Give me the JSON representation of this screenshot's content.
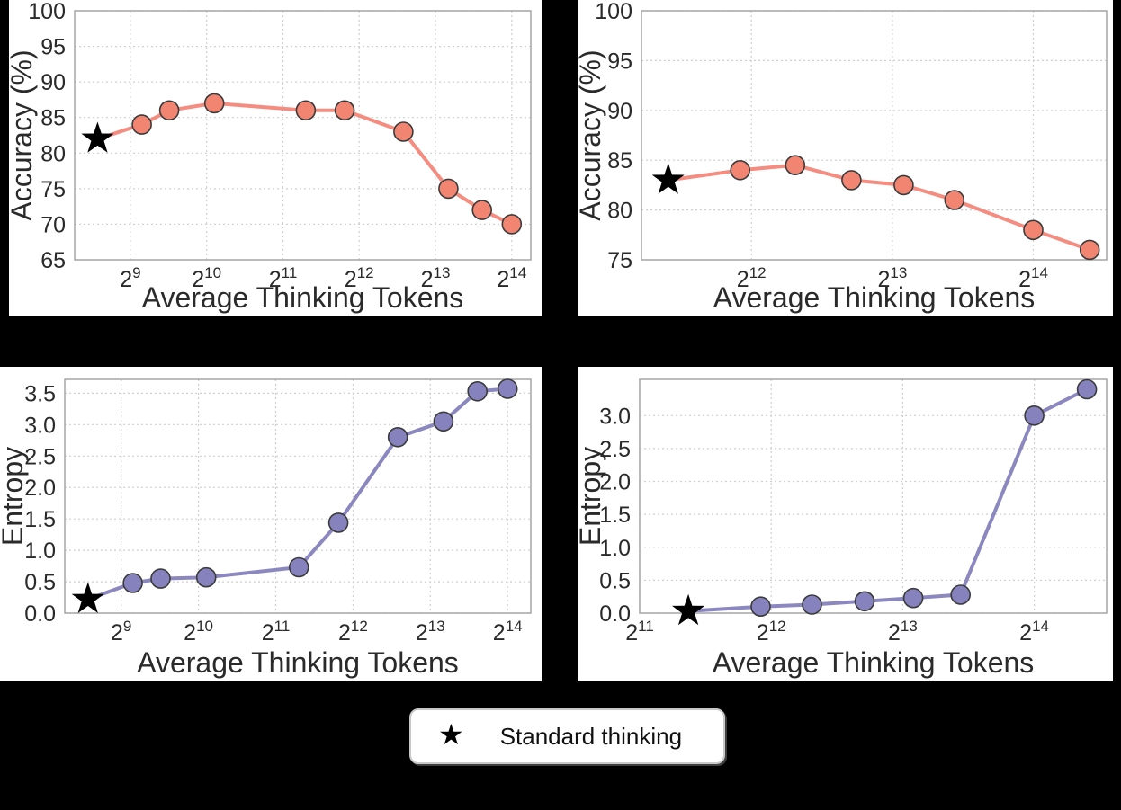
{
  "page": {
    "background": "#000000",
    "panel_background": "#ffffff"
  },
  "colors": {
    "accuracy_line": "#f58c80",
    "accuracy_marker": "#f18572",
    "entropy_line": "#8b87bf",
    "entropy_marker": "#8682bd",
    "marker_edge": "#3b3b3b",
    "star": "#000000",
    "grid": "#cfcfcf",
    "spine": "#a6a6a6",
    "text": "#2a2a2a"
  },
  "legend": {
    "star_glyph": "★",
    "label": "Standard thinking"
  },
  "chart_data": [
    {
      "position": "top-left",
      "type": "line",
      "xlabel": "Average Thinking Tokens",
      "ylabel": "Accuracy (%)",
      "x_scale": "log2",
      "x_tick_base": "2",
      "x_tick_exponents": [
        9,
        10,
        11,
        12,
        13,
        14
      ],
      "xlim_log2": [
        8.27,
        14.25
      ],
      "y_ticks": [
        65,
        70,
        75,
        80,
        85,
        90,
        95,
        100
      ],
      "y_tick_labels": [
        "65",
        "70",
        "75",
        "80",
        "85",
        "90",
        "95",
        "100"
      ],
      "ylim": [
        65,
        100
      ],
      "grid": true,
      "line_color": "#f58c80",
      "marker_color": "#f18572",
      "star_point": {
        "x_log2": 8.57,
        "y": 82
      },
      "points": {
        "x_log2": [
          9.15,
          9.51,
          10.1,
          11.3,
          11.81,
          12.58,
          13.17,
          13.61,
          14.0
        ],
        "y": [
          84,
          86,
          87,
          86,
          86,
          83,
          75,
          72,
          70
        ]
      }
    },
    {
      "position": "top-right",
      "type": "line",
      "xlabel": "Average Thinking Tokens",
      "ylabel": "Accuracy (%)",
      "x_scale": "log2",
      "x_tick_base": "2",
      "x_tick_exponents": [
        12,
        13,
        14
      ],
      "xlim_log2": [
        11.22,
        14.52
      ],
      "y_ticks": [
        75,
        80,
        85,
        90,
        95,
        100
      ],
      "y_tick_labels": [
        "75",
        "80",
        "85",
        "90",
        "95",
        "100"
      ],
      "ylim": [
        75,
        100
      ],
      "grid": true,
      "line_color": "#f58c80",
      "marker_color": "#f18572",
      "star_point": {
        "x_log2": 11.41,
        "y": 83
      },
      "points": {
        "x_log2": [
          11.92,
          12.31,
          12.71,
          13.08,
          13.44,
          14.0,
          14.4
        ],
        "y": [
          84,
          84.5,
          83,
          82.5,
          81,
          78,
          76
        ]
      }
    },
    {
      "position": "bottom-left",
      "type": "line",
      "xlabel": "Average Thinking Tokens",
      "ylabel": "Entropy",
      "x_scale": "log2",
      "x_tick_base": "2",
      "x_tick_exponents": [
        9,
        10,
        11,
        12,
        13,
        14
      ],
      "xlim_log2": [
        8.27,
        14.3
      ],
      "y_ticks": [
        0.0,
        0.5,
        1.0,
        1.5,
        2.0,
        2.5,
        3.0,
        3.5
      ],
      "y_tick_labels": [
        "0.0",
        "0.5",
        "1.0",
        "1.5",
        "2.0",
        "2.5",
        "3.0",
        "3.5"
      ],
      "ylim": [
        0,
        3.72
      ],
      "grid": true,
      "line_color": "#8b87bf",
      "marker_color": "#8682bd",
      "star_point": {
        "x_log2": 8.57,
        "y": 0.22
      },
      "points": {
        "x_log2": [
          9.15,
          9.51,
          10.1,
          11.3,
          11.81,
          12.58,
          13.17,
          13.61,
          14.0
        ],
        "y": [
          0.48,
          0.55,
          0.57,
          0.73,
          1.44,
          2.8,
          3.05,
          3.53,
          3.57
        ]
      }
    },
    {
      "position": "bottom-right",
      "type": "line",
      "xlabel": "Average Thinking Tokens",
      "ylabel": "Entropy",
      "x_scale": "log2",
      "x_tick_base": "2",
      "x_tick_exponents": [
        11,
        12,
        13,
        14
      ],
      "xlim_log2": [
        11.0,
        14.55
      ],
      "y_ticks": [
        0.0,
        0.5,
        1.0,
        1.5,
        2.0,
        2.5,
        3.0
      ],
      "y_tick_labels": [
        "0.0",
        "0.5",
        "1.0",
        "1.5",
        "2.0",
        "2.5",
        "3.0"
      ],
      "ylim": [
        0,
        3.55
      ],
      "grid": true,
      "line_color": "#8b87bf",
      "marker_color": "#8682bd",
      "star_point": {
        "x_log2": 11.37,
        "y": 0.03
      },
      "points": {
        "x_log2": [
          11.92,
          12.31,
          12.71,
          13.08,
          13.44,
          14.0,
          14.4
        ],
        "y": [
          0.1,
          0.13,
          0.18,
          0.23,
          0.28,
          3.0,
          3.4
        ]
      }
    }
  ]
}
